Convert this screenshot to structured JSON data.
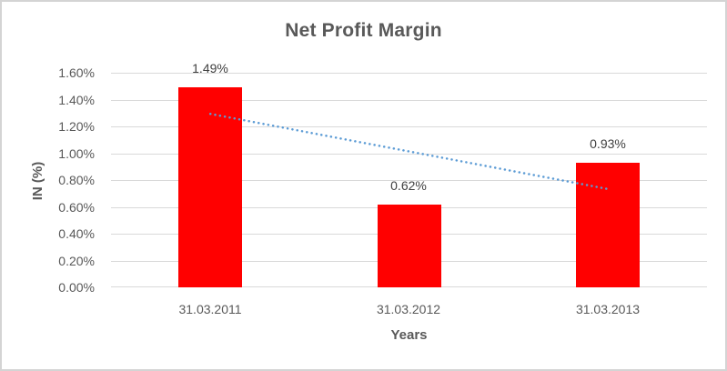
{
  "window": {
    "background": "#FFFFFF",
    "border_color": "#D4D4D4"
  },
  "chart": {
    "title": "Net Profit Margin",
    "x_axis_title": "Years",
    "y_axis_title": "IN (%)"
  },
  "chart_data": {
    "type": "bar",
    "title": "Net Profit Margin",
    "xlabel": "Years",
    "ylabel": "IN (%)",
    "categories": [
      "31.03.2011",
      "31.03.2012",
      "31.03.2013"
    ],
    "values": [
      1.49,
      0.62,
      0.93
    ],
    "data_labels": [
      "1.49%",
      "0.62%",
      "0.93%"
    ],
    "y_ticks": [
      "1.60%",
      "1.40%",
      "1.20%",
      "1.00%",
      "0.80%",
      "0.60%",
      "0.40%",
      "0.20%",
      "0.00%"
    ],
    "ylim": [
      0,
      1.6
    ],
    "grid": true,
    "legend_position": "none",
    "bar_color": "#FF0000",
    "gridline_color": "#D9D9D9",
    "text_color": "#595959",
    "trendline": {
      "type": "linear",
      "style": "dotted",
      "color": "#5B9BD5",
      "endpoint_values": [
        1.29,
        0.73
      ]
    }
  }
}
